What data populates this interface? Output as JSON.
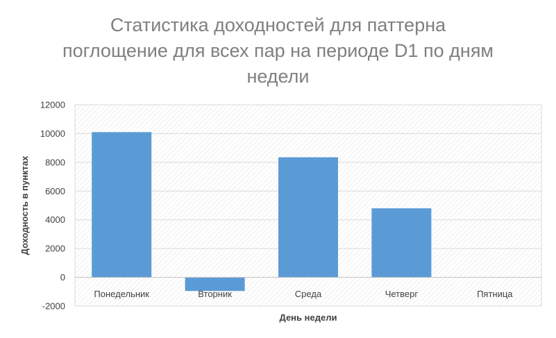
{
  "chart_data": {
    "type": "bar",
    "title_lines": [
      "Статистика доходностей для паттерна",
      "поглощение для всех пар на периоде D1 по дням",
      "недели"
    ],
    "categories": [
      "Понедельник",
      "Вторник",
      "Среда",
      "Четверг",
      "Пятница"
    ],
    "values": [
      10100,
      -950,
      8350,
      4800,
      0
    ],
    "xlabel": "День недели",
    "ylabel": "Доходность в пунктах",
    "ylim": [
      -2000,
      12000
    ],
    "yticks": [
      12000,
      10000,
      8000,
      6000,
      4000,
      2000,
      0,
      -2000
    ],
    "ytick_labels": [
      "12000",
      "10000",
      "8000",
      "6000",
      "4000",
      "2000",
      "0",
      "-2000"
    ],
    "grid": true,
    "legend": "none",
    "bar_color": "#5b9bd5"
  }
}
